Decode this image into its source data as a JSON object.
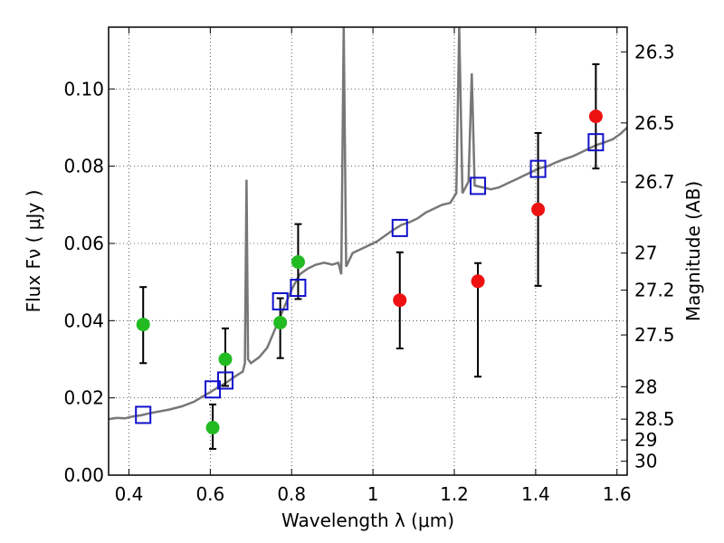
{
  "chart_data": {
    "type": "scatter",
    "xlabel": "Wavelength  λ (μm)",
    "ylabel": "Flux  Fν  ( μJy )",
    "y2label": "Magnitude (AB)",
    "xlim": [
      0.35,
      1.625
    ],
    "ylim": [
      0.0,
      0.116
    ],
    "grid": true,
    "x_ticks": [
      0.4,
      0.6,
      0.8,
      1.0,
      1.2,
      1.4,
      1.6
    ],
    "x_tick_labels": [
      "0.4",
      "0.6",
      "0.8",
      "1",
      "1.2",
      "1.4",
      "1.6"
    ],
    "y_ticks": [
      0.0,
      0.02,
      0.04,
      0.06,
      0.08,
      0.1
    ],
    "y_tick_labels": [
      "0.00",
      "0.02",
      "0.04",
      "0.06",
      "0.08",
      "0.10"
    ],
    "mag_ticks": [
      {
        "label": "26.3",
        "flux": 0.1096
      },
      {
        "label": "26.5",
        "flux": 0.0912
      },
      {
        "label": "26.7",
        "flux": 0.0759
      },
      {
        "label": "27",
        "flux": 0.0575
      },
      {
        "label": "27.2",
        "flux": 0.0479
      },
      {
        "label": "27.5",
        "flux": 0.0363
      },
      {
        "label": "28",
        "flux": 0.0229
      },
      {
        "label": "28.5",
        "flux": 0.0145
      },
      {
        "label": "29",
        "flux": 0.0091
      },
      {
        "label": "30",
        "flux": 0.0036
      }
    ],
    "series": [
      {
        "marker": "circle",
        "color": "#22bb22",
        "points": [
          {
            "x": 0.435,
            "y": 0.039,
            "err": [
              0.029,
              0.0487
            ]
          },
          {
            "x": 0.606,
            "y": 0.0123,
            "err": [
              0.0068,
              0.0183
            ]
          },
          {
            "x": 0.637,
            "y": 0.03,
            "err": [
              0.0231,
              0.038
            ]
          },
          {
            "x": 0.772,
            "y": 0.0395,
            "err": [
              0.0303,
              0.0458
            ]
          },
          {
            "x": 0.816,
            "y": 0.0552,
            "err": [
              0.0456,
              0.065
            ]
          }
        ]
      },
      {
        "marker": "circle",
        "color": "#ee1111",
        "points": [
          {
            "x": 1.066,
            "y": 0.0453,
            "err": [
              0.0328,
              0.0577
            ]
          },
          {
            "x": 1.258,
            "y": 0.0502,
            "err": [
              0.0255,
              0.0549
            ]
          },
          {
            "x": 1.406,
            "y": 0.0688,
            "err": [
              0.049,
              0.0886
            ]
          },
          {
            "x": 1.548,
            "y": 0.0929,
            "err": [
              0.0794,
              0.1064
            ]
          }
        ]
      },
      {
        "marker": "square",
        "color": "#1111cc",
        "points": [
          {
            "x": 0.435,
            "y": 0.0156
          },
          {
            "x": 0.606,
            "y": 0.0222
          },
          {
            "x": 0.637,
            "y": 0.0245
          },
          {
            "x": 0.772,
            "y": 0.045
          },
          {
            "x": 0.816,
            "y": 0.0485
          },
          {
            "x": 1.066,
            "y": 0.064
          },
          {
            "x": 1.258,
            "y": 0.0749
          },
          {
            "x": 1.406,
            "y": 0.0793
          },
          {
            "x": 1.548,
            "y": 0.0862
          }
        ]
      },
      {
        "marker": "line",
        "color": "#777777",
        "points": [
          [
            0.35,
            0.0145
          ],
          [
            0.37,
            0.0148
          ],
          [
            0.39,
            0.0147
          ],
          [
            0.41,
            0.0152
          ],
          [
            0.43,
            0.0155
          ],
          [
            0.45,
            0.016
          ],
          [
            0.47,
            0.0164
          ],
          [
            0.5,
            0.017
          ],
          [
            0.53,
            0.0178
          ],
          [
            0.56,
            0.019
          ],
          [
            0.58,
            0.0203
          ],
          [
            0.6,
            0.0215
          ],
          [
            0.62,
            0.0228
          ],
          [
            0.64,
            0.024
          ],
          [
            0.66,
            0.0255
          ],
          [
            0.68,
            0.0268
          ],
          [
            0.685,
            0.029
          ],
          [
            0.689,
            0.0765
          ],
          [
            0.693,
            0.03
          ],
          [
            0.7,
            0.029
          ],
          [
            0.72,
            0.0305
          ],
          [
            0.74,
            0.033
          ],
          [
            0.76,
            0.038
          ],
          [
            0.78,
            0.043
          ],
          [
            0.8,
            0.048
          ],
          [
            0.82,
            0.052
          ],
          [
            0.84,
            0.0535
          ],
          [
            0.86,
            0.0545
          ],
          [
            0.88,
            0.055
          ],
          [
            0.9,
            0.0545
          ],
          [
            0.915,
            0.055
          ],
          [
            0.922,
            0.052
          ],
          [
            0.928,
            0.116
          ],
          [
            0.934,
            0.054
          ],
          [
            0.95,
            0.0575
          ],
          [
            0.97,
            0.0585
          ],
          [
            0.99,
            0.0595
          ],
          [
            1.01,
            0.0605
          ],
          [
            1.03,
            0.062
          ],
          [
            1.05,
            0.0635
          ],
          [
            1.07,
            0.0648
          ],
          [
            1.09,
            0.0655
          ],
          [
            1.11,
            0.0665
          ],
          [
            1.13,
            0.068
          ],
          [
            1.15,
            0.069
          ],
          [
            1.17,
            0.07
          ],
          [
            1.19,
            0.0705
          ],
          [
            1.205,
            0.073
          ],
          [
            1.212,
            0.116
          ],
          [
            1.22,
            0.073
          ],
          [
            1.235,
            0.076
          ],
          [
            1.243,
            0.104
          ],
          [
            1.25,
            0.075
          ],
          [
            1.27,
            0.0745
          ],
          [
            1.29,
            0.074
          ],
          [
            1.31,
            0.0745
          ],
          [
            1.33,
            0.0755
          ],
          [
            1.35,
            0.0765
          ],
          [
            1.37,
            0.0775
          ],
          [
            1.39,
            0.0785
          ],
          [
            1.41,
            0.0795
          ],
          [
            1.43,
            0.08
          ],
          [
            1.45,
            0.081
          ],
          [
            1.47,
            0.0818
          ],
          [
            1.49,
            0.0825
          ],
          [
            1.51,
            0.0835
          ],
          [
            1.53,
            0.0845
          ],
          [
            1.55,
            0.0855
          ],
          [
            1.57,
            0.0862
          ],
          [
            1.59,
            0.087
          ],
          [
            1.61,
            0.0885
          ],
          [
            1.625,
            0.09
          ]
        ]
      }
    ]
  }
}
